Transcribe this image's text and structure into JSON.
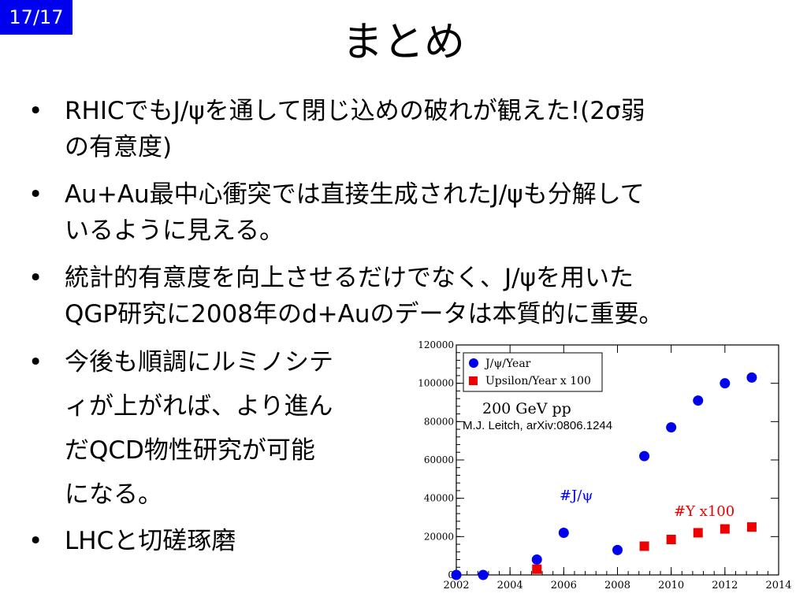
{
  "page_badge": "17/17",
  "title": "まとめ",
  "bullet_marker": "•",
  "bullets": [
    {
      "lines": [
        "RHICでもJ/ψを通して閉じ込めの破れが観えた!(2σ弱",
        "の有意度)"
      ]
    },
    {
      "lines": [
        "Au+Au最中心衝突では直接生成されたJ/ψも分解して",
        "いるように見える。"
      ]
    },
    {
      "lines": [
        "統計的有意度を向上させるだけでなく、J/ψを用いた",
        "QGP研究に2008年のd+Auのデータは本質的に重要。"
      ]
    },
    {
      "lines": [
        "今後も順調にルミノシテ",
        "ィが上がれば、より進ん",
        "だQCD物性研究が可能",
        "になる。"
      ]
    },
    {
      "lines": [
        "LHCと切磋琢磨"
      ]
    }
  ],
  "chart_data": {
    "type": "scatter",
    "xlim": [
      2002,
      2014
    ],
    "ylim": [
      0,
      120000
    ],
    "x_ticks": [
      "2002",
      "2004",
      "2006",
      "2008",
      "2010",
      "2012",
      "2014"
    ],
    "y_ticks": [
      "0",
      "20000",
      "40000",
      "60000",
      "80000",
      "100000",
      "120000"
    ],
    "legend_position": "top-left",
    "legend": [
      "J/ψ/Year",
      "Upsilon/Year x 100"
    ],
    "annotations": {
      "energy": "200 GeV pp",
      "citation": "M.J. Leitch, arXiv:0806.1244",
      "jpsi_label": "#J/ψ",
      "upsilon_label": "#Y x100"
    },
    "series": [
      {
        "name": "J/ψ/Year",
        "color": "#0000ee",
        "marker": "circle",
        "x": [
          2002,
          2003,
          2005,
          2006,
          2008,
          2009,
          2010,
          2011,
          2012,
          2013
        ],
        "y": [
          0,
          0,
          8000,
          22000,
          13000,
          62000,
          77000,
          91000,
          100000,
          103000
        ]
      },
      {
        "name": "Upsilon/Year x 100",
        "color": "#ee0000",
        "marker": "square",
        "x": [
          2005,
          2009,
          2010,
          2011,
          2012,
          2013
        ],
        "y": [
          3000,
          15000,
          18500,
          22000,
          24000,
          25000
        ]
      }
    ]
  }
}
